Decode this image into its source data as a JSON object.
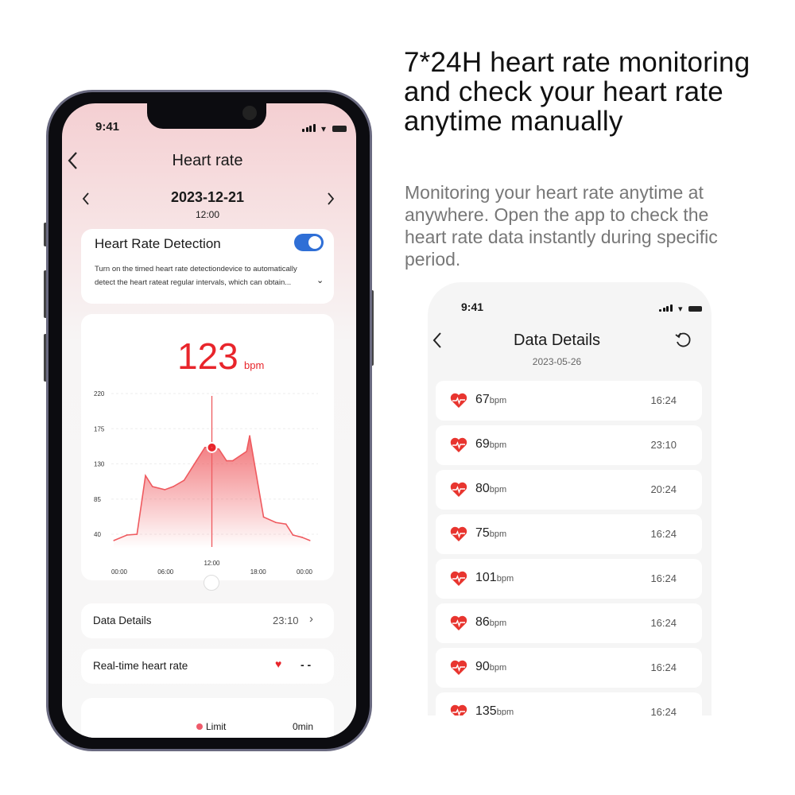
{
  "headline": "7*24H heart rate monitoring and check your heart rate anytime manually",
  "subtext": "Monitoring your heart rate anytime at anywhere. Open the app to check the heart rate data instantly during specific period.",
  "colors": {
    "accent": "#e8252b",
    "toggle": "#2f6fd6",
    "chart_line": "#ef5a5f"
  },
  "left_phone": {
    "status_time": "9:41",
    "title": "Heart rate",
    "date": "2023-12-21",
    "time": "12:00",
    "detection": {
      "title": "Heart Rate Detection",
      "enabled": true,
      "description_line1": "Turn on the timed heart rate detectiondevice to automatically",
      "description_line2": "detect the heart rateat regular intervals, which can obtain..."
    },
    "current_bpm": "123",
    "bpm_unit": "bpm",
    "data_details": {
      "label": "Data Details",
      "value": "23:10"
    },
    "realtime": {
      "label": "Real-time heart rate",
      "value": "- -"
    },
    "bottom": {
      "legend": "Limit",
      "value": "0min"
    }
  },
  "chart_data": {
    "type": "area",
    "x_unit": "hour of day",
    "x_ticks": [
      "00:00",
      "06:00",
      "12:00",
      "18:00",
      "00:00"
    ],
    "y_ticks": [
      "220",
      "175",
      "130",
      "85",
      "40"
    ],
    "ylim": [
      40,
      220
    ],
    "grid": true,
    "highlight": {
      "x": 12,
      "y": 151,
      "label": "12:00"
    },
    "points": [
      [
        -0.7,
        32
      ],
      [
        1.0,
        39
      ],
      [
        2.3,
        40
      ],
      [
        3.4,
        115
      ],
      [
        4.3,
        101
      ],
      [
        5.9,
        97
      ],
      [
        7.0,
        101
      ],
      [
        8.4,
        109
      ],
      [
        10.0,
        134
      ],
      [
        11.1,
        151
      ],
      [
        12,
        151
      ],
      [
        12.9,
        149
      ],
      [
        13.9,
        134
      ],
      [
        14.7,
        134
      ],
      [
        16.5,
        146
      ],
      [
        16.9,
        166
      ],
      [
        18.7,
        62
      ],
      [
        20.3,
        55
      ],
      [
        21.6,
        53
      ],
      [
        22.5,
        39
      ],
      [
        23.7,
        36
      ],
      [
        24.7,
        32
      ]
    ]
  },
  "right_phone": {
    "status_time": "9:41",
    "title": "Data Details",
    "date": "2023-05-26",
    "unit": "bpm",
    "records": [
      {
        "value": "67",
        "time": "16:24"
      },
      {
        "value": "69",
        "time": "23:10"
      },
      {
        "value": "80",
        "time": "20:24"
      },
      {
        "value": "75",
        "time": "16:24"
      },
      {
        "value": "101",
        "time": "16:24"
      },
      {
        "value": "86",
        "time": "16:24"
      },
      {
        "value": "90",
        "time": "16:24"
      },
      {
        "value": "135",
        "time": "16:24"
      }
    ]
  }
}
